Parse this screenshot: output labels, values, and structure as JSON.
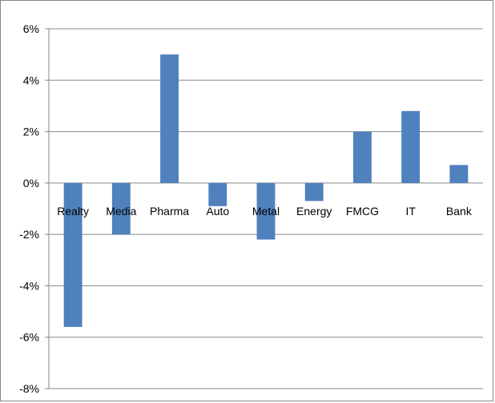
{
  "chart_data": {
    "type": "bar",
    "title": "",
    "xlabel": "",
    "ylabel": "",
    "categories": [
      "Realty",
      "Media",
      "Pharma",
      "Auto",
      "Metal",
      "Energy",
      "FMCG",
      "IT",
      "Bank"
    ],
    "values": [
      -5.6,
      -2.0,
      5.0,
      -0.9,
      -2.2,
      -0.7,
      2.0,
      2.8,
      0.7
    ],
    "ylim": [
      -8,
      6
    ],
    "yticks": [
      6,
      4,
      2,
      0,
      -2,
      -4,
      -6,
      -8
    ],
    "ytick_labels": [
      "6%",
      "4%",
      "2%",
      "0%",
      "-2%",
      "-4%",
      "-6%",
      "-8%"
    ],
    "grid": true,
    "legend": "none",
    "colors": {
      "bar": "#4f81bd",
      "grid": "#888888",
      "axis": "#888888"
    }
  }
}
